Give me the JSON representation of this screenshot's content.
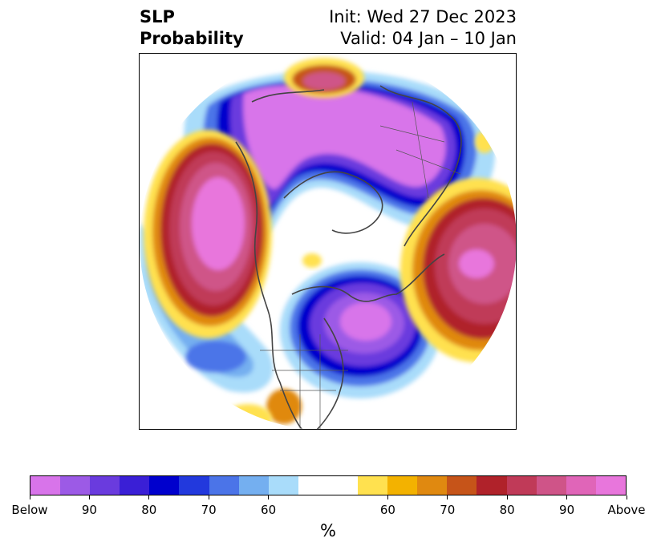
{
  "title": {
    "left_line1": "SLP",
    "left_line2": "Probability",
    "right_line1": "Init: Wed 27 Dec 2023",
    "right_line2": "Valid: 04 Jan – 10 Jan"
  },
  "map": {
    "projection": "north-polar-stereographic",
    "basemap": "coastlines and country/state borders"
  },
  "colorbar": {
    "units": "%",
    "colors": [
      "#d874ea",
      "#9c5ae6",
      "#6a3bde",
      "#3a1fd6",
      "#0000cd",
      "#2239dd",
      "#4b74e8",
      "#74aff0",
      "#a9dcfa",
      "#ffffff",
      "#ffffff",
      "#ffe14f",
      "#f3b200",
      "#e08910",
      "#c65419",
      "#b0222a",
      "#c03a58",
      "#cf5488",
      "#e065b8",
      "#e876dc"
    ],
    "tick_labels": [
      "Below",
      "90",
      "80",
      "70",
      "60",
      "60",
      "70",
      "80",
      "90",
      "Above"
    ]
  }
}
